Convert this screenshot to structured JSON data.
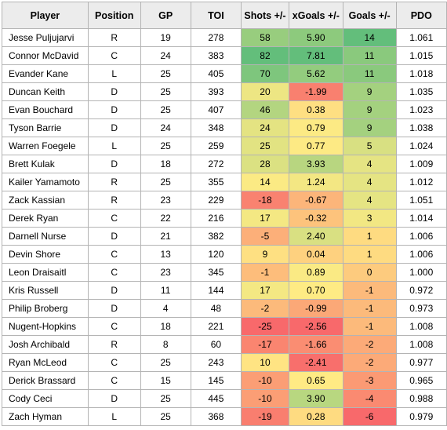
{
  "chart_data": {
    "type": "table",
    "columns": [
      "Player",
      "Position",
      "GP",
      "TOI",
      "Shots +/-",
      "xGoals +/-",
      "Goals +/-",
      "PDO"
    ],
    "rows": [
      [
        "Jesse Puljujarvi",
        "R",
        "19",
        "278",
        "58",
        "5.90",
        "14",
        "1.061"
      ],
      [
        "Connor McDavid",
        "C",
        "24",
        "383",
        "82",
        "7.81",
        "11",
        "1.015"
      ],
      [
        "Evander Kane",
        "L",
        "25",
        "405",
        "70",
        "5.62",
        "11",
        "1.018"
      ],
      [
        "Duncan Keith",
        "D",
        "25",
        "393",
        "20",
        "-1.99",
        "9",
        "1.035"
      ],
      [
        "Evan Bouchard",
        "D",
        "25",
        "407",
        "46",
        "0.38",
        "9",
        "1.023"
      ],
      [
        "Tyson Barrie",
        "D",
        "24",
        "348",
        "24",
        "0.79",
        "9",
        "1.038"
      ],
      [
        "Warren Foegele",
        "L",
        "25",
        "259",
        "25",
        "0.77",
        "5",
        "1.024"
      ],
      [
        "Brett Kulak",
        "D",
        "18",
        "272",
        "28",
        "3.93",
        "4",
        "1.009"
      ],
      [
        "Kailer Yamamoto",
        "R",
        "25",
        "355",
        "14",
        "1.24",
        "4",
        "1.012"
      ],
      [
        "Zack Kassian",
        "R",
        "23",
        "229",
        "-18",
        "-0.67",
        "4",
        "1.051"
      ],
      [
        "Derek Ryan",
        "C",
        "22",
        "216",
        "17",
        "-0.32",
        "3",
        "1.014"
      ],
      [
        "Darnell Nurse",
        "D",
        "21",
        "382",
        "-5",
        "2.40",
        "1",
        "1.006"
      ],
      [
        "Devin Shore",
        "C",
        "13",
        "120",
        "9",
        "0.04",
        "1",
        "1.006"
      ],
      [
        "Leon Draisaitl",
        "C",
        "23",
        "345",
        "-1",
        "0.89",
        "0",
        "1.000"
      ],
      [
        "Kris Russell",
        "D",
        "11",
        "144",
        "17",
        "0.70",
        "-1",
        "0.972"
      ],
      [
        "Philip Broberg",
        "D",
        "4",
        "48",
        "-2",
        "-0.99",
        "-1",
        "0.973"
      ],
      [
        "Nugent-Hopkins",
        "C",
        "18",
        "221",
        "-25",
        "-2.56",
        "-1",
        "1.008"
      ],
      [
        "Josh Archibald",
        "R",
        "8",
        "60",
        "-17",
        "-1.66",
        "-2",
        "1.008"
      ],
      [
        "Ryan McLeod",
        "C",
        "25",
        "243",
        "10",
        "-2.41",
        "-2",
        "0.977"
      ],
      [
        "Derick Brassard",
        "C",
        "15",
        "145",
        "-10",
        "0.65",
        "-3",
        "0.965"
      ],
      [
        "Cody Ceci",
        "D",
        "25",
        "445",
        "-10",
        "3.90",
        "-4",
        "0.988"
      ],
      [
        "Zach Hyman",
        "L",
        "25",
        "368",
        "-19",
        "0.28",
        "-6",
        "0.979"
      ]
    ],
    "heatmap_columns": [
      4,
      5,
      6
    ],
    "colors": {
      "high": "#63be7b",
      "mid": "#ffeb84",
      "low": "#f8696b",
      "header_bg": "#ececec",
      "border": "#b4b4b4"
    }
  }
}
